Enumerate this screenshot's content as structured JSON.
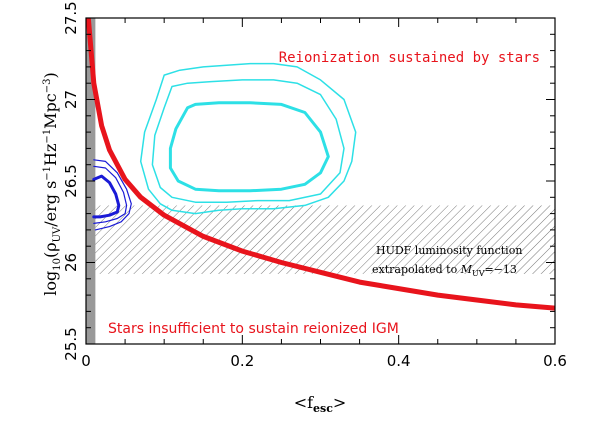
{
  "chart_data": {
    "type": "line",
    "xlabel": "<f",
    "xlabel_sub": "esc",
    "xlabel_close": ">",
    "ylabel": "log",
    "ylabel_sub10": "10",
    "ylabel_mid": "(ρ",
    "ylabel_sub_uv": "UV",
    "ylabel_tail": "/erg s",
    "ylabel_sup1": "−1",
    "ylabel_hz": "Hz",
    "ylabel_sup2": "−1",
    "ylabel_mpc": "Mpc",
    "ylabel_sup3": "−3",
    "ylabel_close": ")",
    "xlim": [
      0,
      0.6
    ],
    "ylim": [
      25.5,
      27.5
    ],
    "xticks": [
      {
        "value": 0,
        "label": "0"
      },
      {
        "value": 0.2,
        "label": "0.2"
      },
      {
        "value": 0.4,
        "label": "0.4"
      },
      {
        "value": 0.6,
        "label": "0.6"
      }
    ],
    "yticks": [
      {
        "value": 25.5,
        "label": "25.5"
      },
      {
        "value": 26,
        "label": "26"
      },
      {
        "value": 26.5,
        "label": "26.5"
      },
      {
        "value": 27,
        "label": "27"
      },
      {
        "value": 27.5,
        "label": "27.5"
      }
    ],
    "grid": false,
    "curve": {
      "color": "#e8141c",
      "x": [
        0.003,
        0.01,
        0.02,
        0.03,
        0.05,
        0.07,
        0.1,
        0.15,
        0.2,
        0.25,
        0.3,
        0.35,
        0.4,
        0.45,
        0.5,
        0.55,
        0.6
      ],
      "y": [
        27.5,
        27.1,
        26.84,
        26.69,
        26.51,
        26.4,
        26.29,
        26.16,
        26.07,
        26.0,
        25.94,
        25.88,
        25.84,
        25.8,
        25.77,
        25.74,
        25.72
      ]
    },
    "hatched_band": {
      "y0": 25.93,
      "y1": 26.35,
      "x0": 0,
      "x1": 0.6
    },
    "gray_band": {
      "x0": 0,
      "x1": 0.012
    },
    "cyan_contours": {
      "color": "#2de0e6",
      "rings": [
        {
          "stroke": 1.5,
          "x": [
            0.1,
            0.09,
            0.075,
            0.07,
            0.08,
            0.095,
            0.11,
            0.14,
            0.17,
            0.2,
            0.24,
            0.28,
            0.31,
            0.33,
            0.34,
            0.345,
            0.33,
            0.3,
            0.27,
            0.24,
            0.21,
            0.18,
            0.15,
            0.12,
            0.1
          ],
          "y": [
            27.15,
            27.0,
            26.8,
            26.62,
            26.45,
            26.36,
            26.32,
            26.3,
            26.32,
            26.33,
            26.33,
            26.35,
            26.4,
            26.5,
            26.62,
            26.8,
            27.0,
            27.12,
            27.2,
            27.22,
            27.22,
            27.21,
            27.2,
            27.18,
            27.15
          ]
        },
        {
          "stroke": 1.5,
          "x": [
            0.11,
            0.1,
            0.088,
            0.085,
            0.095,
            0.11,
            0.14,
            0.18,
            0.22,
            0.26,
            0.3,
            0.325,
            0.33,
            0.32,
            0.3,
            0.27,
            0.24,
            0.2,
            0.16,
            0.13,
            0.11
          ],
          "y": [
            27.08,
            26.95,
            26.78,
            26.6,
            26.46,
            26.4,
            26.37,
            26.37,
            26.38,
            26.38,
            26.42,
            26.55,
            26.7,
            26.88,
            27.03,
            27.1,
            27.12,
            27.12,
            27.11,
            27.1,
            27.08
          ]
        },
        {
          "stroke": 3,
          "x": [
            0.13,
            0.115,
            0.108,
            0.108,
            0.118,
            0.14,
            0.17,
            0.21,
            0.25,
            0.28,
            0.3,
            0.31,
            0.3,
            0.28,
            0.25,
            0.21,
            0.17,
            0.14,
            0.13
          ],
          "y": [
            26.95,
            26.82,
            26.7,
            26.58,
            26.5,
            26.45,
            26.44,
            26.44,
            26.45,
            26.48,
            26.55,
            26.65,
            26.8,
            26.92,
            26.97,
            26.98,
            26.98,
            26.97,
            26.95
          ]
        }
      ]
    },
    "blue_contours": {
      "color": "#1a1ad6",
      "rings": [
        {
          "stroke": 1.2,
          "x": [
            0.01,
            0.025,
            0.04,
            0.052,
            0.058,
            0.055,
            0.045,
            0.03,
            0.012
          ],
          "y": [
            26.63,
            26.62,
            26.55,
            26.45,
            26.36,
            26.3,
            26.25,
            26.22,
            26.2
          ]
        },
        {
          "stroke": 1.2,
          "x": [
            0.01,
            0.025,
            0.038,
            0.048,
            0.052,
            0.05,
            0.04,
            0.025,
            0.01
          ],
          "y": [
            26.59,
            26.58,
            26.52,
            26.43,
            26.35,
            26.3,
            26.27,
            26.25,
            26.24
          ]
        },
        {
          "stroke": 3,
          "x": [
            0.01,
            0.02,
            0.03,
            0.038,
            0.042,
            0.04,
            0.03,
            0.018,
            0.01
          ],
          "y": [
            26.51,
            26.53,
            26.49,
            26.42,
            26.35,
            26.31,
            26.29,
            26.28,
            26.28
          ]
        }
      ]
    },
    "annotations": {
      "top": "Reionization sustained by stars",
      "bottom": "Stars insufficient to sustain reionized IGM",
      "hudf_line1": "HUDF luminosity function",
      "hudf_line2_pre": "extrapolated to ",
      "hudf_line2_m": "M",
      "hudf_line2_sub": "UV",
      "hudf_line2_post": "=−13"
    }
  }
}
